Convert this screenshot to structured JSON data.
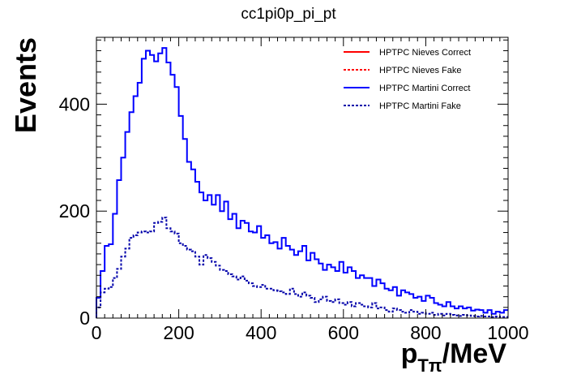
{
  "chart_data": {
    "type": "histogram-step",
    "title": "cc1pi0p_pi_pt",
    "xlabel": {
      "main": "p",
      "sub": "Tπ",
      "suffix": "/MeV"
    },
    "ylabel": "Events",
    "xlim": [
      0,
      1000
    ],
    "ylim": [
      0,
      525
    ],
    "bin_width": 10,
    "x_ticks": [
      0,
      200,
      400,
      600,
      800,
      1000
    ],
    "y_ticks": [
      0,
      200,
      400
    ],
    "legend_position": "top-right",
    "series": [
      {
        "name": "HPTPC Nieves Correct",
        "color": "#ff0000",
        "dash": "solid",
        "values": []
      },
      {
        "name": "HPTPC Nieves Fake",
        "color": "#ff0000",
        "dash": "dotted",
        "values": []
      },
      {
        "name": "HPTPC Martini Correct",
        "color": "#0000ff",
        "dash": "solid",
        "values": [
          38,
          88,
          135,
          138,
          195,
          258,
          300,
          348,
          385,
          415,
          440,
          485,
          500,
          492,
          480,
          495,
          505,
          478,
          455,
          432,
          378,
          335,
          292,
          278,
          255,
          235,
          220,
          230,
          212,
          230,
          200,
          218,
          185,
          195,
          168,
          182,
          178,
          162,
          160,
          172,
          150,
          155,
          140,
          142,
          130,
          150,
          135,
          128,
          118,
          125,
          135,
          108,
          122,
          110,
          102,
          90,
          100,
          95,
          88,
          105,
          85,
          95,
          88,
          75,
          80,
          75,
          75,
          60,
          72,
          65,
          55,
          52,
          58,
          42,
          52,
          48,
          45,
          38,
          40,
          32,
          42,
          38,
          28,
          25,
          22,
          30,
          22,
          18,
          22,
          18,
          20,
          14,
          16,
          15,
          10,
          15,
          8,
          12,
          10,
          15
        ]
      },
      {
        "name": "HPTPC Martini Fake",
        "color": "#0000aa",
        "dash": "dotted",
        "values": [
          20,
          48,
          55,
          58,
          75,
          92,
          115,
          130,
          150,
          155,
          160,
          162,
          160,
          162,
          178,
          180,
          188,
          168,
          162,
          158,
          140,
          135,
          128,
          125,
          115,
          100,
          118,
          112,
          105,
          98,
          90,
          88,
          82,
          78,
          72,
          78,
          70,
          65,
          60,
          58,
          62,
          55,
          55,
          52,
          50,
          48,
          45,
          55,
          45,
          40,
          48,
          42,
          38,
          30,
          35,
          40,
          32,
          30,
          35,
          28,
          25,
          30,
          22,
          28,
          25,
          22,
          20,
          28,
          18,
          20,
          15,
          12,
          18,
          15,
          12,
          10,
          15,
          12,
          8,
          10,
          8,
          10,
          6,
          8,
          5,
          8,
          6,
          5,
          4,
          6,
          5,
          4,
          3,
          4,
          3,
          3,
          2,
          3,
          2,
          2
        ]
      }
    ]
  }
}
